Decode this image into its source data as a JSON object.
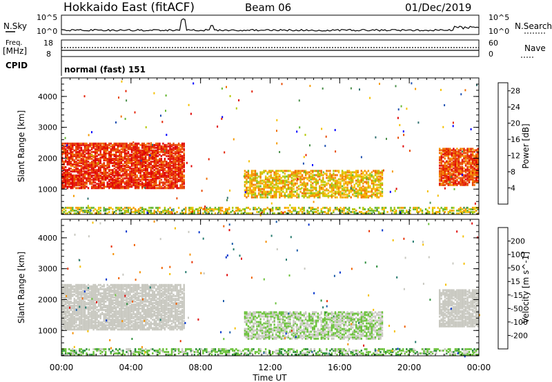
{
  "header": {
    "radar": "Hokkaido East (fitACF)",
    "beam": "Beam 06",
    "date": "01/Dec/2019"
  },
  "summary_panels": {
    "nsky": {
      "label": "N.Sky",
      "ticks": [
        "10^5",
        "10^0"
      ]
    },
    "nsearch": {
      "label": "N.Search",
      "ticks": [
        "10^5",
        "10^0"
      ]
    },
    "freq": {
      "label_line1": "Freq.",
      "label_line2": "[MHz]",
      "ticks": [
        "18",
        "8"
      ]
    },
    "nave": {
      "label": "Nave",
      "ticks": [
        "60",
        "0"
      ]
    },
    "cpid": {
      "label": "CPID",
      "mode": "normal (fast) 151"
    }
  },
  "colors": {
    "power_scale": [
      "#0000ff",
      "#1f4fb0",
      "#2f6f6f",
      "#4a8f4a",
      "#66b833",
      "#b5c800",
      "#f5c000",
      "#f59a00",
      "#f07000",
      "#e84a00",
      "#e42000",
      "#e00000"
    ],
    "velocity_scale": [
      "#0033cc",
      "#1a5aa8",
      "#247a6e",
      "#2e8f3e",
      "#6cc23c",
      "#c8c8c0",
      "#c8c8c0",
      "#f5c000",
      "#f59000",
      "#f06000",
      "#e83000",
      "#e00000"
    ]
  },
  "chart_data": [
    {
      "type": "heatmap",
      "title": "Power",
      "xlabel": "",
      "ylabel": "Slant Range [km]",
      "x_ticks": [
        "00:00",
        "04:00",
        "08:00",
        "12:00",
        "16:00",
        "20:00",
        "00:00"
      ],
      "y_ticks": [
        "1000",
        "2000",
        "3000",
        "4000"
      ],
      "ylim": [
        180,
        4600
      ],
      "colorbar": {
        "label": "Power [dB]",
        "ticks": [
          "4",
          "8",
          "12",
          "16",
          "20",
          "24",
          "28"
        ],
        "range": [
          0,
          30
        ]
      },
      "regions": [
        {
          "t_start": 0.0,
          "t_end": 7.0,
          "r_start": 1000,
          "r_end": 2450,
          "value": 26
        },
        {
          "t_start": 10.5,
          "t_end": 18.5,
          "r_start": 700,
          "r_end": 1600,
          "value": 17
        },
        {
          "t_start": 21.7,
          "t_end": 24.0,
          "r_start": 1100,
          "r_end": 2300,
          "value": 24
        },
        {
          "t_start": 0.0,
          "t_end": 24.0,
          "r_start": 180,
          "r_end": 400,
          "value": 14
        }
      ]
    },
    {
      "type": "heatmap",
      "title": "Velocity",
      "xlabel": "Time UT",
      "ylabel": "Slant Range [km]",
      "x_ticks": [
        "00:00",
        "04:00",
        "08:00",
        "12:00",
        "16:00",
        "20:00",
        "00:00"
      ],
      "y_ticks": [
        "1000",
        "2000",
        "3000",
        "4000"
      ],
      "ylim": [
        180,
        4600
      ],
      "colorbar": {
        "label": "Velocity [m s^-1]",
        "ticks": [
          "200",
          "100",
          "50",
          "15",
          "-15",
          "-50",
          "-100",
          "-200"
        ],
        "range": [
          -250,
          250
        ]
      },
      "regions": [
        {
          "t_start": 0.0,
          "t_end": 7.0,
          "r_start": 1000,
          "r_end": 2450,
          "value": 0
        },
        {
          "t_start": 10.5,
          "t_end": 18.5,
          "r_start": 700,
          "r_end": 1600,
          "value": -40
        },
        {
          "t_start": 21.7,
          "t_end": 24.0,
          "r_start": 1100,
          "r_end": 2300,
          "value": 0
        },
        {
          "t_start": 0.0,
          "t_end": 24.0,
          "r_start": 180,
          "r_end": 400,
          "value": -60
        }
      ]
    }
  ]
}
